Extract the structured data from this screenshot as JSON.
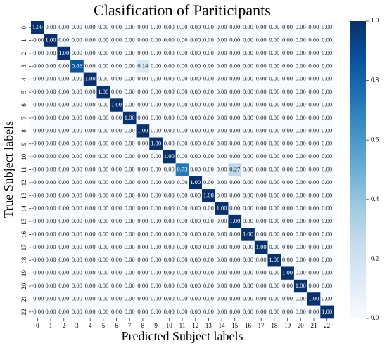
{
  "chart_data": {
    "type": "heatmap",
    "title": "Clasification of Pariticipants",
    "xlabel": "Predicted Subject labels",
    "ylabel": "True Subject labels",
    "colormap": "Blues",
    "x": [
      0,
      1,
      2,
      3,
      4,
      5,
      6,
      7,
      8,
      9,
      10,
      11,
      12,
      13,
      14,
      15,
      16,
      17,
      18,
      19,
      20,
      21,
      22
    ],
    "y": [
      0,
      1,
      2,
      3,
      4,
      5,
      6,
      7,
      8,
      9,
      10,
      11,
      12,
      13,
      14,
      15,
      16,
      17,
      18,
      19,
      20,
      21,
      22
    ],
    "z": [
      [
        1,
        0,
        0,
        0,
        0,
        0,
        0,
        0,
        0,
        0,
        0,
        0,
        0,
        0,
        0,
        0,
        0,
        0,
        0,
        0,
        0,
        0,
        0
      ],
      [
        0,
        1,
        0,
        0,
        0,
        0,
        0,
        0,
        0,
        0,
        0,
        0,
        0,
        0,
        0,
        0,
        0,
        0,
        0,
        0,
        0,
        0,
        0
      ],
      [
        0,
        0,
        1,
        0,
        0,
        0,
        0,
        0,
        0,
        0,
        0,
        0,
        0,
        0,
        0,
        0,
        0,
        0,
        0,
        0,
        0,
        0,
        0
      ],
      [
        0,
        0,
        0,
        0.86,
        0,
        0,
        0,
        0,
        0.14,
        0,
        0,
        0,
        0,
        0,
        0,
        0,
        0,
        0,
        0,
        0,
        0,
        0,
        0
      ],
      [
        0,
        0,
        0,
        0,
        1,
        0,
        0,
        0,
        0,
        0,
        0,
        0,
        0,
        0,
        0,
        0,
        0,
        0,
        0,
        0,
        0,
        0,
        0
      ],
      [
        0,
        0,
        0,
        0,
        0,
        1,
        0,
        0,
        0,
        0,
        0,
        0,
        0,
        0,
        0,
        0,
        0,
        0,
        0,
        0,
        0,
        0,
        0
      ],
      [
        0,
        0,
        0,
        0,
        0,
        0,
        1,
        0,
        0,
        0,
        0,
        0,
        0,
        0,
        0,
        0,
        0,
        0,
        0,
        0,
        0,
        0,
        0
      ],
      [
        0,
        0,
        0,
        0,
        0,
        0,
        0,
        1,
        0,
        0,
        0,
        0,
        0,
        0,
        0,
        0,
        0,
        0,
        0,
        0,
        0,
        0,
        0
      ],
      [
        0,
        0,
        0,
        0,
        0,
        0,
        0,
        0,
        1,
        0,
        0,
        0,
        0,
        0,
        0,
        0,
        0,
        0,
        0,
        0,
        0,
        0,
        0
      ],
      [
        0,
        0,
        0,
        0,
        0,
        0,
        0,
        0,
        0,
        1,
        0,
        0,
        0,
        0,
        0,
        0,
        0,
        0,
        0,
        0,
        0,
        0,
        0
      ],
      [
        0,
        0,
        0,
        0,
        0,
        0,
        0,
        0,
        0,
        0,
        1,
        0,
        0,
        0,
        0,
        0,
        0,
        0,
        0,
        0,
        0,
        0,
        0
      ],
      [
        0,
        0,
        0,
        0,
        0,
        0,
        0,
        0,
        0,
        0,
        0,
        0.73,
        0,
        0,
        0,
        0.27,
        0,
        0,
        0,
        0,
        0,
        0,
        0
      ],
      [
        0,
        0,
        0,
        0,
        0,
        0,
        0,
        0,
        0,
        0,
        0,
        0,
        1,
        0,
        0,
        0,
        0,
        0,
        0,
        0,
        0,
        0,
        0
      ],
      [
        0,
        0,
        0,
        0,
        0,
        0,
        0,
        0,
        0,
        0,
        0,
        0,
        0,
        1,
        0,
        0,
        0,
        0,
        0,
        0,
        0,
        0,
        0
      ],
      [
        0,
        0,
        0,
        0,
        0,
        0,
        0,
        0,
        0,
        0,
        0,
        0,
        0,
        0,
        1,
        0,
        0,
        0,
        0,
        0,
        0,
        0,
        0
      ],
      [
        0,
        0,
        0,
        0,
        0,
        0,
        0,
        0,
        0,
        0,
        0,
        0,
        0,
        0,
        0,
        1,
        0,
        0,
        0,
        0,
        0,
        0,
        0
      ],
      [
        0,
        0,
        0,
        0,
        0,
        0,
        0,
        0,
        0,
        0,
        0,
        0,
        0,
        0,
        0,
        0,
        1,
        0,
        0,
        0,
        0,
        0,
        0
      ],
      [
        0,
        0,
        0,
        0,
        0,
        0,
        0,
        0,
        0,
        0,
        0,
        0,
        0,
        0,
        0,
        0,
        0,
        1,
        0,
        0,
        0,
        0,
        0
      ],
      [
        0,
        0,
        0,
        0,
        0,
        0,
        0,
        0,
        0,
        0,
        0,
        0,
        0,
        0,
        0,
        0,
        0,
        0,
        1,
        0,
        0,
        0,
        0
      ],
      [
        0,
        0,
        0,
        0,
        0,
        0,
        0,
        0,
        0,
        0,
        0,
        0,
        0,
        0,
        0,
        0,
        0,
        0,
        0,
        1,
        0,
        0,
        0
      ],
      [
        0,
        0,
        0,
        0,
        0,
        0,
        0,
        0,
        0,
        0,
        0,
        0,
        0,
        0,
        0,
        0,
        0,
        0,
        0,
        0,
        1,
        0,
        0
      ],
      [
        0,
        0,
        0,
        0,
        0,
        0,
        0,
        0,
        0,
        0,
        0,
        0,
        0,
        0,
        0,
        0,
        0,
        0,
        0,
        0,
        0,
        1,
        0
      ],
      [
        0,
        0,
        0,
        0,
        0,
        0,
        0,
        0,
        0,
        0,
        0,
        0,
        0,
        0,
        0,
        0,
        0,
        0,
        0,
        0,
        0,
        0,
        1
      ]
    ],
    "value_labels": [
      [
        "1.00",
        "0.00",
        "0.00",
        "0.00",
        "0.00",
        "0.00",
        "0.00",
        "0.00",
        "0.00",
        "0.00",
        "0.00",
        "0.00",
        "0.00",
        "0.00",
        "0.00",
        "0.00",
        "0.00",
        "0.00",
        "0.00",
        "0.00",
        "0.00",
        "0.00",
        "0.00"
      ],
      [
        "-0.00",
        "1.00",
        "0.00",
        "0.00",
        "0.00",
        "0.00",
        "0.00",
        "0.00",
        "0.00",
        "0.00",
        "0.00",
        "0.00",
        "0.00",
        "0.00",
        "0.00",
        "0.00",
        "0.00",
        "0.00",
        "0.00",
        "0.00",
        "0.00",
        "0.00",
        "0.00"
      ],
      [
        "-0.00",
        "0.00",
        "1.00",
        "0.00",
        "0.00",
        "0.00",
        "0.00",
        "0.00",
        "0.00",
        "0.00",
        "0.00",
        "0.00",
        "0.00",
        "0.00",
        "0.00",
        "0.00",
        "0.00",
        "0.00",
        "0.00",
        "0.00",
        "0.00",
        "0.00",
        "0.00"
      ],
      [
        "-0.00",
        "0.00",
        "0.00",
        "0.86",
        "0.00",
        "0.00",
        "0.00",
        "0.00",
        "0.14",
        "0.00",
        "0.00",
        "0.00",
        "0.00",
        "0.00",
        "0.00",
        "0.00",
        "0.00",
        "0.00",
        "0.00",
        "0.00",
        "0.00",
        "0.00",
        "0.00"
      ],
      [
        "-0.00",
        "0.00",
        "0.00",
        "0.00",
        "1.00",
        "0.00",
        "0.00",
        "0.00",
        "0.00",
        "0.00",
        "0.00",
        "0.00",
        "0.00",
        "0.00",
        "0.00",
        "0.00",
        "0.00",
        "0.00",
        "0.00",
        "0.00",
        "0.00",
        "0.00",
        "0.00"
      ],
      [
        "-0.00",
        "0.00",
        "0.00",
        "0.00",
        "0.00",
        "1.00",
        "0.00",
        "0.00",
        "0.00",
        "0.00",
        "0.00",
        "0.00",
        "0.00",
        "0.00",
        "0.00",
        "0.00",
        "0.00",
        "0.00",
        "0.00",
        "0.00",
        "0.00",
        "0.00",
        "0.00"
      ],
      [
        "-0.00",
        "0.00",
        "0.00",
        "0.00",
        "0.00",
        "0.00",
        "1.00",
        "0.00",
        "0.00",
        "0.00",
        "0.00",
        "0.00",
        "0.00",
        "0.00",
        "0.00",
        "0.00",
        "0.00",
        "0.00",
        "0.00",
        "0.00",
        "0.00",
        "0.00",
        "0.00"
      ],
      [
        "-0.00",
        "0.00",
        "0.00",
        "0.00",
        "0.00",
        "0.00",
        "0.00",
        "1.00",
        "0.00",
        "0.00",
        "0.00",
        "0.00",
        "0.00",
        "0.00",
        "0.00",
        "0.00",
        "0.00",
        "0.00",
        "0.00",
        "0.00",
        "0.00",
        "0.00",
        "0.00"
      ],
      [
        "-0.00",
        "0.00",
        "0.00",
        "0.00",
        "0.00",
        "0.00",
        "0.00",
        "0.00",
        "1.00",
        "0.00",
        "0.00",
        "0.00",
        "0.00",
        "0.00",
        "0.00",
        "0.00",
        "0.00",
        "0.00",
        "0.00",
        "0.00",
        "0.00",
        "0.00",
        "0.00"
      ],
      [
        "-0.00",
        "0.00",
        "0.00",
        "0.00",
        "0.00",
        "0.00",
        "0.00",
        "0.00",
        "0.00",
        "1.00",
        "0.00",
        "0.00",
        "0.00",
        "0.00",
        "0.00",
        "0.00",
        "0.00",
        "0.00",
        "0.00",
        "0.00",
        "0.00",
        "0.00",
        "0.00"
      ],
      [
        "-0.00",
        "0.00",
        "0.00",
        "0.00",
        "0.00",
        "0.00",
        "0.00",
        "0.00",
        "0.00",
        "0.00",
        "1.00",
        "0.00",
        "0.00",
        "0.00",
        "0.00",
        "0.00",
        "0.00",
        "0.00",
        "0.00",
        "0.00",
        "0.00",
        "0.00",
        "0.00"
      ],
      [
        "-0.00",
        "0.00",
        "0.00",
        "0.00",
        "0.00",
        "0.00",
        "0.00",
        "0.00",
        "0.00",
        "0.00",
        "0.00",
        "0.73",
        "0.00",
        "0.00",
        "0.00",
        "0.27",
        "0.00",
        "0.00",
        "0.00",
        "0.00",
        "0.00",
        "0.00",
        "0.00"
      ],
      [
        "-0.00",
        "0.00",
        "0.00",
        "0.00",
        "0.00",
        "0.00",
        "0.00",
        "0.00",
        "0.00",
        "0.00",
        "0.00",
        "0.00",
        "1.00",
        "0.00",
        "0.00",
        "0.00",
        "0.00",
        "0.00",
        "0.00",
        "0.00",
        "0.00",
        "0.00",
        "0.00"
      ],
      [
        "-0.00",
        "0.00",
        "0.00",
        "0.00",
        "0.00",
        "0.00",
        "0.00",
        "0.00",
        "0.00",
        "0.00",
        "0.00",
        "0.00",
        "0.00",
        "1.00",
        "0.00",
        "0.00",
        "0.00",
        "0.00",
        "0.00",
        "0.00",
        "0.00",
        "0.00",
        "0.00"
      ],
      [
        "-0.00",
        "0.00",
        "0.00",
        "0.00",
        "0.00",
        "0.00",
        "0.00",
        "0.00",
        "0.00",
        "0.00",
        "0.00",
        "0.00",
        "0.00",
        "0.00",
        "1.00",
        "0.00",
        "0.00",
        "0.00",
        "0.00",
        "0.00",
        "0.00",
        "0.00",
        "0.00"
      ],
      [
        "-0.00",
        "0.00",
        "0.00",
        "0.00",
        "0.00",
        "0.00",
        "0.00",
        "0.00",
        "0.00",
        "0.00",
        "0.00",
        "0.00",
        "0.00",
        "0.00",
        "0.00",
        "1.00",
        "0.00",
        "0.00",
        "0.00",
        "0.00",
        "0.00",
        "0.00",
        "0.00"
      ],
      [
        "-0.00",
        "0.00",
        "0.00",
        "0.00",
        "0.00",
        "0.00",
        "0.00",
        "0.00",
        "0.00",
        "0.00",
        "0.00",
        "0.00",
        "0.00",
        "0.00",
        "0.00",
        "0.00",
        "1.00",
        "0.00",
        "0.00",
        "0.00",
        "0.00",
        "0.00",
        "0.00"
      ],
      [
        "-0.00",
        "0.00",
        "0.00",
        "0.00",
        "0.00",
        "0.00",
        "0.00",
        "0.00",
        "0.00",
        "0.00",
        "0.00",
        "0.00",
        "0.00",
        "0.00",
        "0.00",
        "0.00",
        "0.00",
        "1.00",
        "0.00",
        "0.00",
        "0.00",
        "0.00",
        "0.00"
      ],
      [
        "-0.00",
        "0.00",
        "0.00",
        "0.00",
        "0.00",
        "0.00",
        "0.00",
        "0.00",
        "0.00",
        "0.00",
        "0.00",
        "0.00",
        "0.00",
        "0.00",
        "0.00",
        "0.00",
        "0.00",
        "0.00",
        "1.00",
        "0.00",
        "0.00",
        "0.00",
        "0.00"
      ],
      [
        "-0.00",
        "0.00",
        "0.00",
        "0.00",
        "0.00",
        "0.00",
        "0.00",
        "0.00",
        "0.00",
        "0.00",
        "0.00",
        "0.00",
        "0.00",
        "0.00",
        "0.00",
        "0.00",
        "0.00",
        "0.00",
        "0.00",
        "1.00",
        "0.00",
        "0.00",
        "0.00"
      ],
      [
        "-0.00",
        "0.00",
        "0.00",
        "0.00",
        "0.00",
        "0.00",
        "0.00",
        "0.00",
        "0.00",
        "0.00",
        "0.00",
        "0.00",
        "0.00",
        "0.00",
        "0.00",
        "0.00",
        "0.00",
        "0.00",
        "0.00",
        "0.00",
        "1.00",
        "0.00",
        "0.00"
      ],
      [
        "-0.00",
        "0.00",
        "0.00",
        "0.00",
        "0.00",
        "0.00",
        "0.00",
        "0.00",
        "0.00",
        "0.00",
        "0.00",
        "0.00",
        "0.00",
        "0.00",
        "0.00",
        "0.00",
        "0.00",
        "0.00",
        "0.00",
        "0.00",
        "0.00",
        "1.00",
        "0.00"
      ],
      [
        "-0.00",
        "0.00",
        "0.00",
        "0.00",
        "0.00",
        "0.00",
        "0.00",
        "0.00",
        "0.00",
        "0.00",
        "0.00",
        "0.00",
        "0.00",
        "0.00",
        "0.00",
        "0.00",
        "0.00",
        "0.00",
        "0.00",
        "0.00",
        "0.00",
        "0.00",
        "1.00"
      ]
    ],
    "colorbar_lim": [
      0,
      1
    ],
    "colorbar_ticks": [
      {
        "value": 0,
        "label": "0.0"
      },
      0.2,
      0.4,
      0.6,
      0.8,
      {
        "value": 1,
        "label": "1.0"
      }
    ]
  }
}
